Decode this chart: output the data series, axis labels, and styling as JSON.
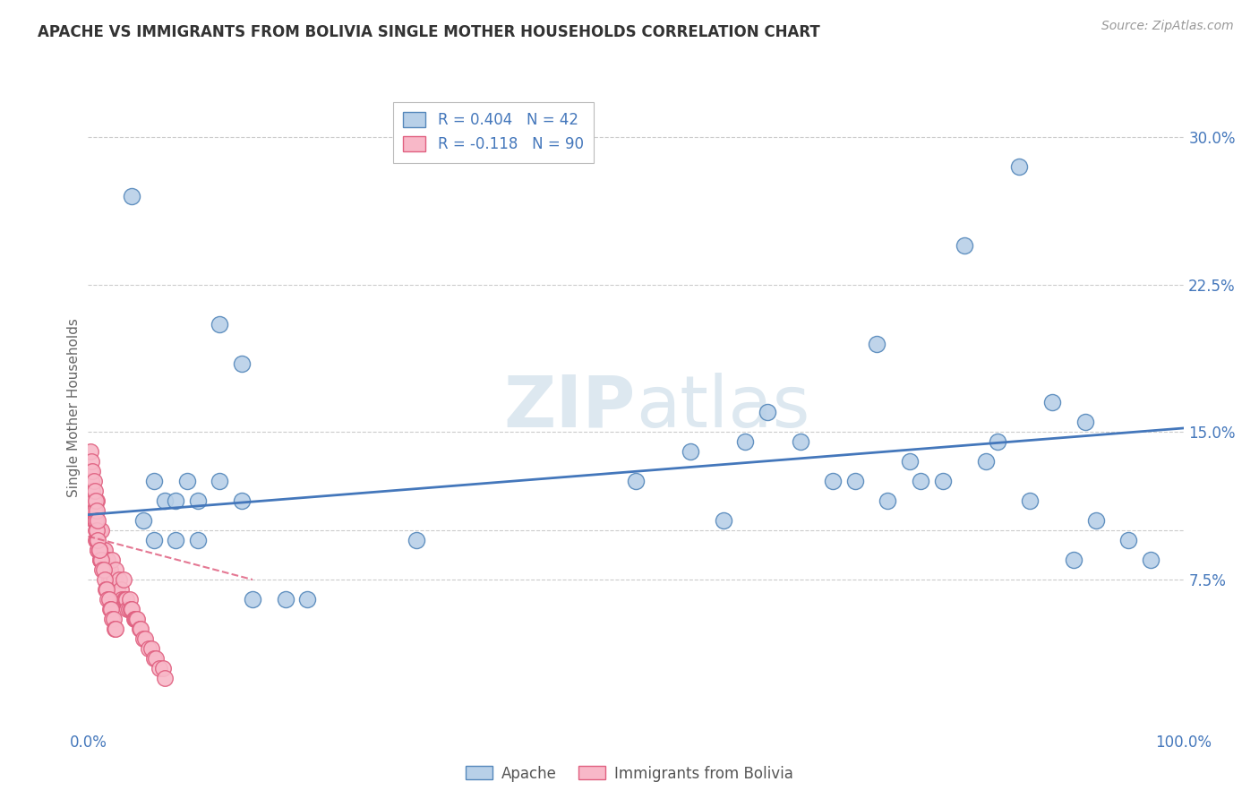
{
  "title": "APACHE VS IMMIGRANTS FROM BOLIVIA SINGLE MOTHER HOUSEHOLDS CORRELATION CHART",
  "source": "Source: ZipAtlas.com",
  "ylabel": "Single Mother Households",
  "apache_R": 0.404,
  "apache_N": 42,
  "bolivia_R": -0.118,
  "bolivia_N": 90,
  "ymin": 0.0,
  "ymax": 0.325,
  "xmin": 0.0,
  "xmax": 1.0,
  "background_color": "#ffffff",
  "grid_color": "#cccccc",
  "apache_color": "#b8d0e8",
  "apache_edge_color": "#5588bb",
  "apache_line_color": "#4477bb",
  "bolivia_color": "#f8b8c8",
  "bolivia_edge_color": "#e06080",
  "bolivia_line_color": "#e06080",
  "watermark_color": "#dde8f0",
  "title_color": "#333333",
  "source_color": "#999999",
  "tick_color": "#4477bb",
  "ylabel_color": "#666666",
  "apache_x": [
    0.04,
    0.06,
    0.07,
    0.08,
    0.09,
    0.1,
    0.12,
    0.14,
    0.15,
    0.18,
    0.2,
    0.12,
    0.14,
    0.5,
    0.55,
    0.58,
    0.6,
    0.62,
    0.65,
    0.68,
    0.7,
    0.72,
    0.73,
    0.75,
    0.76,
    0.78,
    0.8,
    0.82,
    0.83,
    0.85,
    0.86,
    0.88,
    0.9,
    0.91,
    0.92,
    0.95,
    0.97,
    0.05,
    0.06,
    0.08,
    0.1,
    0.3
  ],
  "apache_y": [
    0.27,
    0.125,
    0.115,
    0.115,
    0.125,
    0.115,
    0.205,
    0.185,
    0.065,
    0.065,
    0.065,
    0.125,
    0.115,
    0.125,
    0.14,
    0.105,
    0.145,
    0.16,
    0.145,
    0.125,
    0.125,
    0.195,
    0.115,
    0.135,
    0.125,
    0.125,
    0.245,
    0.135,
    0.145,
    0.285,
    0.115,
    0.165,
    0.085,
    0.155,
    0.105,
    0.095,
    0.085,
    0.105,
    0.095,
    0.095,
    0.095,
    0.095
  ],
  "bolivia_x": [
    0.005,
    0.007,
    0.008,
    0.009,
    0.01,
    0.011,
    0.012,
    0.013,
    0.014,
    0.015,
    0.016,
    0.017,
    0.018,
    0.019,
    0.02,
    0.021,
    0.022,
    0.023,
    0.024,
    0.025,
    0.026,
    0.027,
    0.028,
    0.029,
    0.03,
    0.031,
    0.032,
    0.033,
    0.034,
    0.035,
    0.036,
    0.037,
    0.038,
    0.039,
    0.04,
    0.042,
    0.043,
    0.044,
    0.045,
    0.047,
    0.048,
    0.05,
    0.052,
    0.055,
    0.058,
    0.06,
    0.062,
    0.065,
    0.068,
    0.07,
    0.003,
    0.004,
    0.005,
    0.006,
    0.007,
    0.008,
    0.009,
    0.01,
    0.011,
    0.012,
    0.013,
    0.014,
    0.015,
    0.016,
    0.017,
    0.018,
    0.019,
    0.02,
    0.021,
    0.022,
    0.023,
    0.024,
    0.025,
    0.002,
    0.003,
    0.004,
    0.005,
    0.006,
    0.007,
    0.008,
    0.009,
    0.01,
    0.002,
    0.003,
    0.004,
    0.005,
    0.006,
    0.007,
    0.008,
    0.009
  ],
  "bolivia_y": [
    0.105,
    0.095,
    0.115,
    0.09,
    0.1,
    0.085,
    0.1,
    0.085,
    0.09,
    0.09,
    0.085,
    0.08,
    0.085,
    0.075,
    0.08,
    0.075,
    0.085,
    0.075,
    0.075,
    0.08,
    0.07,
    0.07,
    0.075,
    0.065,
    0.07,
    0.065,
    0.075,
    0.065,
    0.065,
    0.065,
    0.06,
    0.06,
    0.065,
    0.06,
    0.06,
    0.055,
    0.055,
    0.055,
    0.055,
    0.05,
    0.05,
    0.045,
    0.045,
    0.04,
    0.04,
    0.035,
    0.035,
    0.03,
    0.03,
    0.025,
    0.12,
    0.115,
    0.11,
    0.105,
    0.1,
    0.095,
    0.09,
    0.09,
    0.085,
    0.085,
    0.08,
    0.08,
    0.075,
    0.07,
    0.07,
    0.065,
    0.065,
    0.06,
    0.06,
    0.055,
    0.055,
    0.05,
    0.05,
    0.13,
    0.125,
    0.12,
    0.115,
    0.11,
    0.105,
    0.1,
    0.095,
    0.09,
    0.14,
    0.135,
    0.13,
    0.125,
    0.12,
    0.115,
    0.11,
    0.105
  ],
  "apache_trend_x": [
    0.0,
    1.0
  ],
  "apache_trend_y": [
    0.108,
    0.152
  ],
  "bolivia_trend_x": [
    0.0,
    0.15
  ],
  "bolivia_trend_y": [
    0.097,
    0.075
  ],
  "ytick_vals": [
    0.075,
    0.1,
    0.15,
    0.225,
    0.3
  ],
  "ytick_labels": [
    "7.5%",
    "",
    "15.0%",
    "22.5%",
    "30.0%"
  ]
}
